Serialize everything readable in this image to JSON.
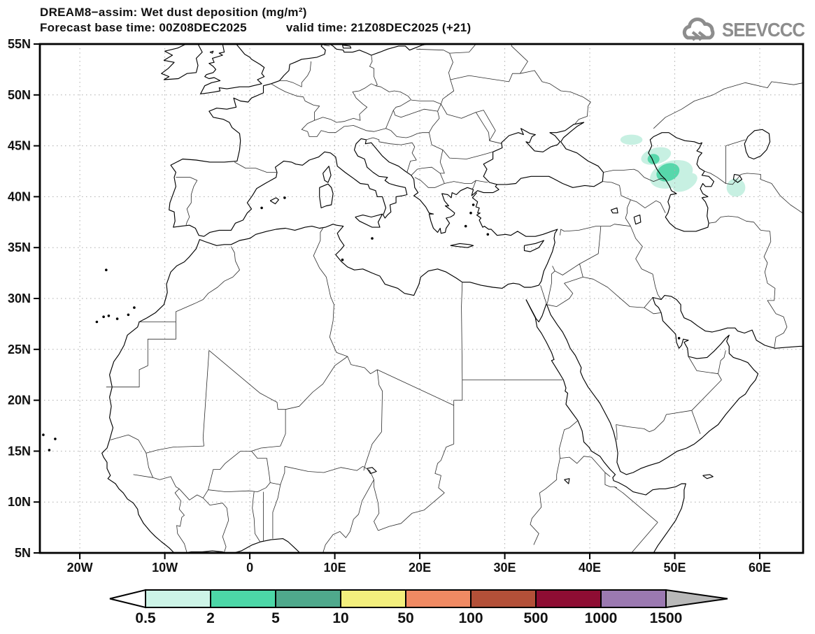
{
  "header": {
    "line1": "DREAM8−assim: Wet dust deposition (mg/m²)",
    "forecast_base": "Forecast base time: 00Z08DEC2025",
    "valid_time": "valid time: 21Z08DEC2025 (+21)"
  },
  "logo": {
    "text": "SEEVCCC",
    "color": "#8d8d8d"
  },
  "map": {
    "projection": {
      "lon_min": -24.7,
      "lon_max": 65.1,
      "lat_min": 5,
      "lat_max": 55
    },
    "lat_ticks": [
      {
        "label": "55N",
        "lat": 55
      },
      {
        "label": "50N",
        "lat": 50
      },
      {
        "label": "45N",
        "lat": 45
      },
      {
        "label": "40N",
        "lat": 40
      },
      {
        "label": "35N",
        "lat": 35
      },
      {
        "label": "30N",
        "lat": 30
      },
      {
        "label": "25N",
        "lat": 25
      },
      {
        "label": "20N",
        "lat": 20
      },
      {
        "label": "15N",
        "lat": 15
      },
      {
        "label": "10N",
        "lat": 10
      },
      {
        "label": "5N",
        "lat": 5
      }
    ],
    "lon_ticks": [
      {
        "label": "20W",
        "lon": -20
      },
      {
        "label": "10W",
        "lon": -10
      },
      {
        "label": "0",
        "lon": 0
      },
      {
        "label": "10E",
        "lon": 10
      },
      {
        "label": "20E",
        "lon": 20
      },
      {
        "label": "30E",
        "lon": 30
      },
      {
        "label": "40E",
        "lon": 40
      },
      {
        "label": "50E",
        "lon": 50
      },
      {
        "label": "60E",
        "lon": 60
      }
    ],
    "grid": {
      "lon_step_deg": 10,
      "lat_step_deg": 5,
      "color": "#ababab"
    },
    "coastline_color": "#000000",
    "border_color": "#2b2b2b"
  },
  "chart_data": {
    "type": "heatmap",
    "title": "DREAM8−assim: Wet dust deposition (mg/m²)",
    "model": "DREAM8-assim",
    "variable": "Wet dust deposition",
    "units": "mg/m²",
    "forecast_base_time": "00Z08DEC2025",
    "valid_time": "21Z08DEC2025 (+21)",
    "lon_range": [
      -25,
      65
    ],
    "lat_range": [
      5,
      55
    ],
    "contour_levels": [
      0.5,
      2,
      5,
      10,
      50,
      100,
      500,
      1000,
      1500
    ],
    "legend_position": "bottom",
    "dust_colors": [
      "#c7f0e2",
      "#57d7ab"
    ],
    "regions": [
      {
        "level": 1,
        "value_range": "0.5-2",
        "lon": 44.9,
        "lat": 45.6,
        "rx": 1.3,
        "ry": 0.5,
        "rot": 0
      },
      {
        "level": 1,
        "value_range": "0.5-2",
        "lon": 47.8,
        "lat": 44.0,
        "rx": 1.8,
        "ry": 0.8,
        "rot": -15
      },
      {
        "level": 1,
        "value_range": "0.5-2",
        "lon": 49.6,
        "lat": 42.2,
        "rx": 2.6,
        "ry": 1.3,
        "rot": -18
      },
      {
        "level": 1,
        "value_range": "0.5-2",
        "lon": 51.2,
        "lat": 41.4,
        "rx": 1.6,
        "ry": 0.75,
        "rot": -30
      },
      {
        "level": 1,
        "value_range": "0.5-2",
        "lon": 57.2,
        "lat": 40.9,
        "rx": 1.1,
        "ry": 0.9,
        "rot": 0
      },
      {
        "level": 2,
        "value_range": "2-5",
        "lon": 47.5,
        "lat": 43.7,
        "rx": 0.7,
        "ry": 0.5,
        "rot": 0
      },
      {
        "level": 2,
        "value_range": "2-5",
        "lon": 49.2,
        "lat": 42.4,
        "rx": 1.4,
        "ry": 0.85,
        "rot": -22
      }
    ]
  },
  "colorbar": {
    "labels": [
      "0.5",
      "2",
      "5",
      "10",
      "50",
      "100",
      "500",
      "1000",
      "1500"
    ],
    "cell_colors": [
      "#cdf4e7",
      "#4cd7a7",
      "#4fa98c",
      "#f3ef7d",
      "#f08a63",
      "#b35038",
      "#8e0d33",
      "#9b79b1"
    ],
    "under_color": "#ffffff",
    "over_color": "#b9b9b9"
  }
}
